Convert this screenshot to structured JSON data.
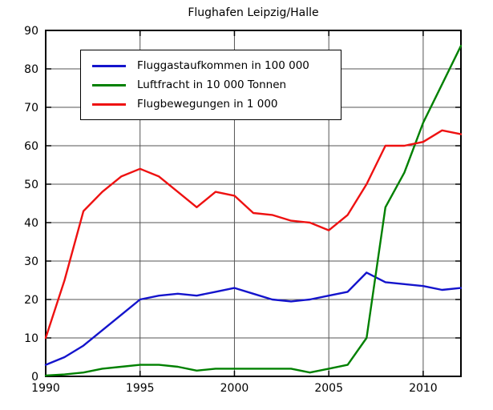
{
  "title": "Flughafen Leipzig/Halle",
  "chart_data": {
    "type": "line",
    "title": "Flughafen Leipzig/Halle",
    "x": [
      1990,
      1991,
      1992,
      1993,
      1994,
      1995,
      1996,
      1997,
      1998,
      1999,
      2000,
      2001,
      2002,
      2003,
      2004,
      2005,
      2006,
      2007,
      2008,
      2009,
      2010,
      2011,
      2012
    ],
    "series": [
      {
        "name": "Fluggastaufkommen in 100 000",
        "color": "#1414cc",
        "values": [
          3,
          5,
          8,
          12,
          16,
          20,
          21,
          21.5,
          21,
          22,
          23,
          21.5,
          20,
          19.5,
          20,
          21,
          22,
          27,
          24.5,
          24,
          23.5,
          22.5,
          23
        ]
      },
      {
        "name": "Luftfracht in 10 000 Tonnen",
        "color": "#008000",
        "values": [
          0.2,
          0.5,
          1,
          2,
          2.5,
          3,
          3,
          2.5,
          1.5,
          2,
          2,
          2,
          2,
          2,
          1,
          2,
          3,
          10,
          44,
          53,
          66,
          76,
          86
        ]
      },
      {
        "name": "Flugbewegungen in 1 000",
        "color": "#ee1111",
        "values": [
          10,
          25,
          43,
          48,
          52,
          54,
          52,
          48,
          44,
          48,
          47,
          42.5,
          42,
          40.5,
          40,
          38,
          42,
          50,
          60,
          60,
          61,
          64,
          63
        ]
      }
    ],
    "xlim": [
      1990,
      2012
    ],
    "ylim": [
      0,
      90
    ],
    "x_ticks": [
      1990,
      1995,
      2000,
      2005,
      2010
    ],
    "y_ticks": [
      0,
      10,
      20,
      30,
      40,
      50,
      60,
      70,
      80,
      90
    ],
    "grid": true,
    "legend_position": "upper-left",
    "axis_color": "#000000",
    "grid_color": "#555555"
  }
}
